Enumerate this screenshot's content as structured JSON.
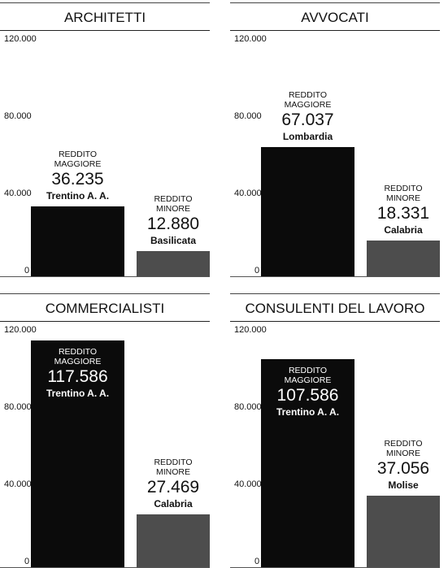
{
  "chart_data": [
    {
      "type": "bar",
      "title": "ARCHITETTI",
      "categories": [
        "REDDITO MAGGIORE",
        "REDDITO MINORE"
      ],
      "regions": [
        "Trentino A. A.",
        "Basilicata"
      ],
      "values": [
        36235,
        12880
      ],
      "value_labels": [
        "36.235",
        "12.880"
      ],
      "colors": [
        "#0b0b0b",
        "#4d4d4d"
      ],
      "ylim": [
        0,
        120000
      ],
      "yticks": [
        {
          "value": 0,
          "label": "0"
        },
        {
          "value": 40000,
          "label": "40.000"
        },
        {
          "value": 80000,
          "label": "80.000"
        },
        {
          "value": 120000,
          "label": "120.000"
        }
      ]
    },
    {
      "type": "bar",
      "title": "AVVOCATI",
      "categories": [
        "REDDITO MAGGIORE",
        "REDDITO MINORE"
      ],
      "regions": [
        "Lombardia",
        "Calabria"
      ],
      "values": [
        67037,
        18331
      ],
      "value_labels": [
        "67.037",
        "18.331"
      ],
      "colors": [
        "#0b0b0b",
        "#4d4d4d"
      ],
      "ylim": [
        0,
        120000
      ],
      "yticks": [
        {
          "value": 0,
          "label": "0"
        },
        {
          "value": 40000,
          "label": "40.000"
        },
        {
          "value": 80000,
          "label": "80.000"
        },
        {
          "value": 120000,
          "label": "120.000"
        }
      ]
    },
    {
      "type": "bar",
      "title": "COMMERCIALISTI",
      "categories": [
        "REDDITO MAGGIORE",
        "REDDITO MINORE"
      ],
      "regions": [
        "Trentino A. A.",
        "Calabria"
      ],
      "values": [
        117586,
        27469
      ],
      "value_labels": [
        "117.586",
        "27.469"
      ],
      "colors": [
        "#0b0b0b",
        "#4d4d4d"
      ],
      "ylim": [
        0,
        120000
      ],
      "yticks": [
        {
          "value": 0,
          "label": "0"
        },
        {
          "value": 40000,
          "label": "40.000"
        },
        {
          "value": 80000,
          "label": "80.000"
        },
        {
          "value": 120000,
          "label": "120.000"
        }
      ]
    },
    {
      "type": "bar",
      "title": "CONSULENTI DEL LAVORO",
      "categories": [
        "REDDITO MAGGIORE",
        "REDDITO MINORE"
      ],
      "regions": [
        "Trentino A. A.",
        "Molise"
      ],
      "values": [
        107586,
        37056
      ],
      "value_labels": [
        "107.586",
        "37.056"
      ],
      "colors": [
        "#0b0b0b",
        "#4d4d4d"
      ],
      "ylim": [
        0,
        120000
      ],
      "yticks": [
        {
          "value": 0,
          "label": "0"
        },
        {
          "value": 40000,
          "label": "40.000"
        },
        {
          "value": 80000,
          "label": "80.000"
        },
        {
          "value": 120000,
          "label": "120.000"
        }
      ]
    }
  ]
}
